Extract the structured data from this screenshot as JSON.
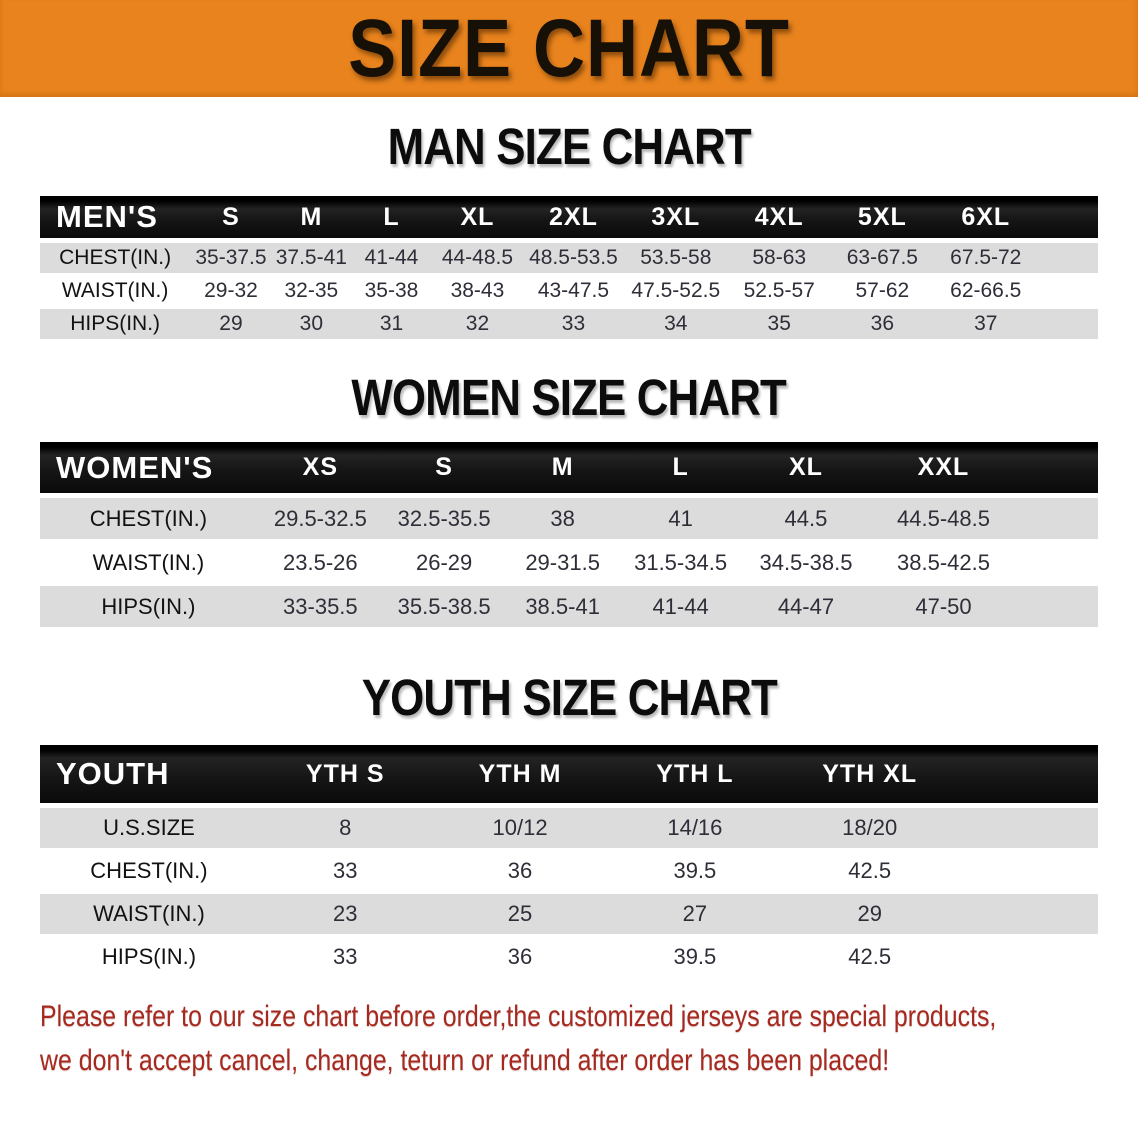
{
  "banner": {
    "title": "SIZE CHART",
    "bg_color": "#E8831D"
  },
  "sections": [
    {
      "id": "men",
      "title": "MAN SIZE CHART",
      "table": {
        "corner_label": "MEN'S",
        "size_headers": [
          "S",
          "M",
          "L",
          "XL",
          "2XL",
          "3XL",
          "4XL",
          "5XL",
          "6XL"
        ],
        "rows": [
          {
            "label": "CHEST(IN.)",
            "values": [
              "35-37.5",
              "37.5-41",
              "41-44",
              "44-48.5",
              "48.5-53.5",
              "53.5-58",
              "58-63",
              "63-67.5",
              "67.5-72"
            ]
          },
          {
            "label": "WAIST(IN.)",
            "values": [
              "29-32",
              "32-35",
              "35-38",
              "38-43",
              "43-47.5",
              "47.5-52.5",
              "52.5-57",
              "57-62",
              "62-66.5"
            ]
          },
          {
            "label": "HIPS(IN.)",
            "values": [
              "29",
              "30",
              "31",
              "32",
              "33",
              "34",
              "35",
              "36",
              "37"
            ]
          }
        ]
      }
    },
    {
      "id": "women",
      "title": "WOMEN SIZE CHART",
      "table": {
        "corner_label": "WOMEN'S",
        "size_headers": [
          "XS",
          "S",
          "M",
          "L",
          "XL",
          "XXL"
        ],
        "rows": [
          {
            "label": "CHEST(IN.)",
            "values": [
              "29.5-32.5",
              "32.5-35.5",
              "38",
              "41",
              "44.5",
              "44.5-48.5"
            ]
          },
          {
            "label": "WAIST(IN.)",
            "values": [
              "23.5-26",
              "26-29",
              "29-31.5",
              "31.5-34.5",
              "34.5-38.5",
              "38.5-42.5"
            ]
          },
          {
            "label": "HIPS(IN.)",
            "values": [
              "33-35.5",
              "35.5-38.5",
              "38.5-41",
              "41-44",
              "44-47",
              "47-50"
            ]
          }
        ]
      }
    },
    {
      "id": "youth",
      "title": "YOUTH SIZE CHART",
      "table": {
        "corner_label": "YOUTH",
        "size_headers": [
          "YTH S",
          "YTH M",
          "YTH L",
          "YTH XL"
        ],
        "rows": [
          {
            "label": "U.S.SIZE",
            "values": [
              "8",
              "10/12",
              "14/16",
              "18/20"
            ]
          },
          {
            "label": "CHEST(IN.)",
            "values": [
              "33",
              "36",
              "39.5",
              "42.5"
            ]
          },
          {
            "label": "WAIST(IN.)",
            "values": [
              "23",
              "25",
              "27",
              "29"
            ]
          },
          {
            "label": "HIPS(IN.)",
            "values": [
              "33",
              "36",
              "39.5",
              "42.5"
            ]
          }
        ]
      }
    }
  ],
  "footnote": {
    "color": "#A5291F",
    "lines": [
      "Please refer to our size chart before order,the customized jerseys are special products,",
      "we don't accept cancel, change, teturn or refund after order has been placed!"
    ]
  }
}
